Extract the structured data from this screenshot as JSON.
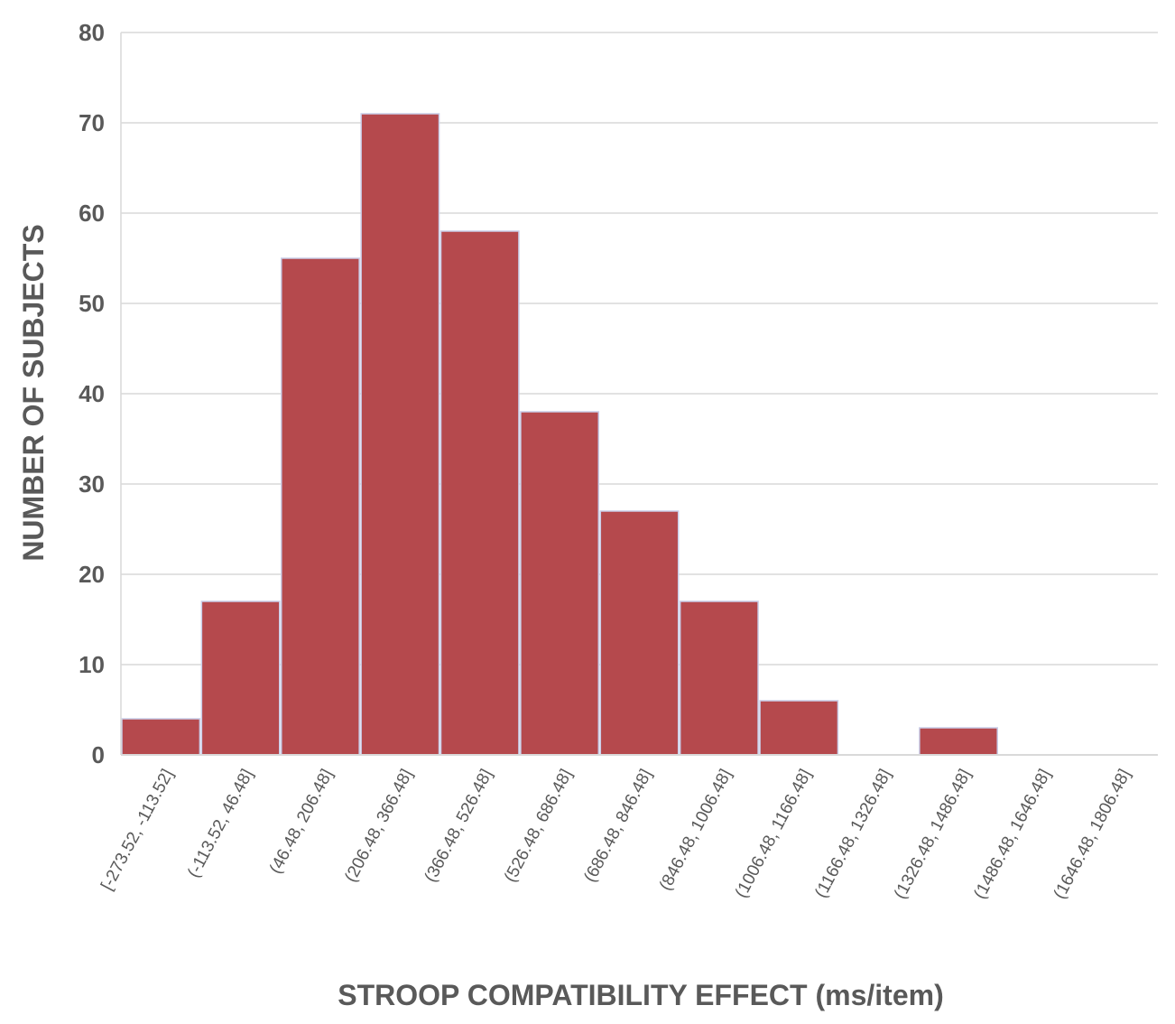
{
  "chart_data": {
    "type": "bar",
    "title": "",
    "xlabel": "STROOP COMPATIBILITY EFFECT (ms/item)",
    "ylabel": "NUMBER OF SUBJECTS",
    "ylim": [
      0,
      80
    ],
    "yticks": [
      0,
      10,
      20,
      30,
      40,
      50,
      60,
      70,
      80
    ],
    "grid": true,
    "legend": "none",
    "categories": [
      "[-273.52, -113.52]",
      "(-113.52, 46.48]",
      "(46.48, 206.48]",
      "(206.48, 366.48]",
      "(366.48, 526.48]",
      "(526.48, 686.48]",
      "(686.48, 846.48]",
      "(846.48, 1006.48]",
      "(1006.48, 1166.48]",
      "(1166.48, 1326.48]",
      "(1326.48, 1486.48]",
      "(1486.48, 1646.48]",
      "(1646.48, 1806.48]"
    ],
    "values": [
      4,
      17,
      55,
      71,
      58,
      38,
      27,
      17,
      6,
      0,
      3,
      0,
      0
    ],
    "colors": {
      "bar": "#b5494d",
      "bar_edge": "#c9cde8",
      "grid": "#d9d9d9",
      "axis_text": "#595959",
      "axis_line": "#d9d9d9"
    }
  }
}
